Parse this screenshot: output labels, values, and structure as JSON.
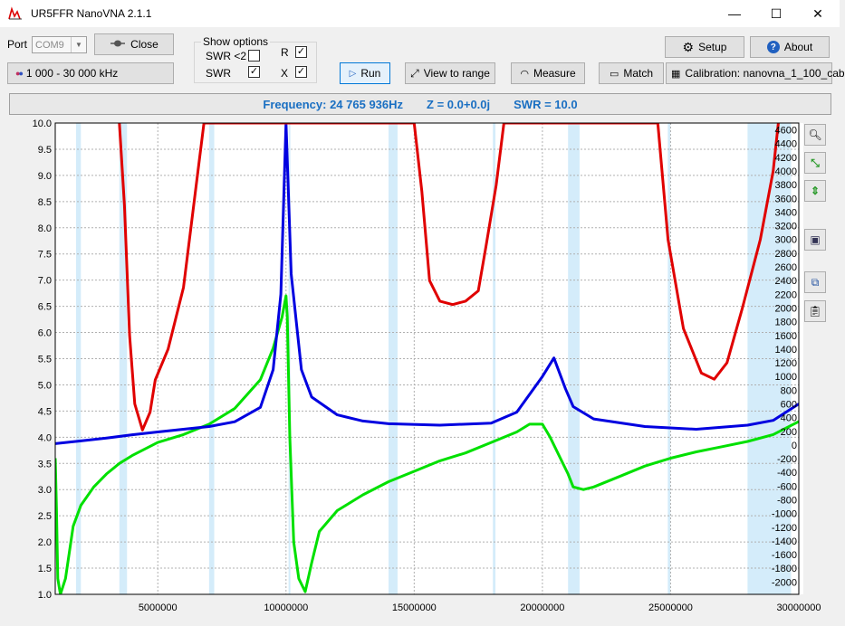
{
  "window": {
    "title": "UR5FFR NanoVNA 2.1.1",
    "minimize_glyph": "—",
    "maximize_glyph": "☐",
    "close_glyph": "✕"
  },
  "toolbar": {
    "port_label": "Port",
    "port_value": "COM9",
    "close_label": "Close",
    "range_label": "1 000 - 30 000 kHz",
    "show_options_label": "Show options",
    "swr_lt2_label": "SWR <2",
    "swr_lt2_checked": "",
    "r_label": "R",
    "r_checked": "✓",
    "swr_label": "SWR",
    "swr_checked": "✓",
    "x_label": "X",
    "x_checked": "✓",
    "run_label": "Run",
    "view_to_range_label": "View to range",
    "measure_label": "Measure",
    "match_label": "Match",
    "setup_label": "Setup",
    "about_label": "About",
    "calibration_label": "Calibration: nanovna_1_100_cab"
  },
  "status": {
    "frequency": "Frequency: 24 765 936Hz",
    "impedance": "Z = 0.0+0.0j",
    "swr": "SWR = 10.0"
  },
  "colors": {
    "swr": "#00e000",
    "r": "#0000e0",
    "x": "#e00000",
    "band": "#d4ecfa",
    "status_text": "#1a6fc2"
  },
  "chart_data": {
    "type": "line",
    "x_ticks": [
      "5000000",
      "10000000",
      "15000000",
      "20000000",
      "25000000",
      "30000000"
    ],
    "left_ticks": [
      "1.0",
      "1.5",
      "2.0",
      "2.5",
      "3.0",
      "3.5",
      "4.0",
      "4.5",
      "5.0",
      "5.5",
      "6.0",
      "6.5",
      "7.0",
      "7.5",
      "8.0",
      "8.5",
      "9.0",
      "9.5",
      "10.0"
    ],
    "right_ticks": [
      "-2000",
      "-1800",
      "-1600",
      "-1400",
      "-1200",
      "-1000",
      "-800",
      "-600",
      "-400",
      "-200",
      "0",
      "200",
      "400",
      "600",
      "800",
      "1000",
      "1200",
      "1400",
      "1600",
      "1800",
      "2000",
      "2200",
      "2400",
      "2600",
      "2800",
      "3000",
      "3200",
      "3400",
      "3600",
      "3800",
      "4000",
      "4200",
      "4400",
      "4600"
    ],
    "xlim": [
      1000000,
      30000000
    ],
    "ylim_left": [
      1.0,
      10.0
    ],
    "ylim_right": [
      -2180,
      4700
    ],
    "grid": true,
    "bands": [
      [
        1810000,
        2000000
      ],
      [
        3500000,
        3800000
      ],
      [
        7000000,
        7200000
      ],
      [
        10100000,
        10150000
      ],
      [
        14000000,
        14350000
      ],
      [
        18068000,
        18168000
      ],
      [
        21000000,
        21450000
      ],
      [
        24890000,
        24990000
      ],
      [
        28000000,
        29700000
      ]
    ],
    "series": [
      {
        "key": "swr",
        "axis": "left",
        "points": [
          [
            1000000,
            3.6
          ],
          [
            1050000,
            2.6
          ],
          [
            1100000,
            1.3
          ],
          [
            1200000,
            1.0
          ],
          [
            1400000,
            1.3
          ],
          [
            1700000,
            2.3
          ],
          [
            2000000,
            2.7
          ],
          [
            2500000,
            3.05
          ],
          [
            3000000,
            3.3
          ],
          [
            3500000,
            3.5
          ],
          [
            4000000,
            3.65
          ],
          [
            5000000,
            3.9
          ],
          [
            6000000,
            4.05
          ],
          [
            7000000,
            4.25
          ],
          [
            8000000,
            4.55
          ],
          [
            9000000,
            5.1
          ],
          [
            9500000,
            5.7
          ],
          [
            9850000,
            6.3
          ],
          [
            10000000,
            6.7
          ],
          [
            10050000,
            6.3
          ],
          [
            10150000,
            4.0
          ],
          [
            10300000,
            2.0
          ],
          [
            10500000,
            1.3
          ],
          [
            10750000,
            1.05
          ],
          [
            11000000,
            1.6
          ],
          [
            11300000,
            2.2
          ],
          [
            12000000,
            2.6
          ],
          [
            13000000,
            2.9
          ],
          [
            14000000,
            3.15
          ],
          [
            15000000,
            3.35
          ],
          [
            16000000,
            3.55
          ],
          [
            17000000,
            3.7
          ],
          [
            18000000,
            3.9
          ],
          [
            19000000,
            4.1
          ],
          [
            19500000,
            4.25
          ],
          [
            20000000,
            4.25
          ],
          [
            20300000,
            4.0
          ],
          [
            20700000,
            3.6
          ],
          [
            21000000,
            3.3
          ],
          [
            21200000,
            3.05
          ],
          [
            21600000,
            3.0
          ],
          [
            22000000,
            3.05
          ],
          [
            23000000,
            3.25
          ],
          [
            24000000,
            3.45
          ],
          [
            25000000,
            3.6
          ],
          [
            26000000,
            3.72
          ],
          [
            27000000,
            3.82
          ],
          [
            28000000,
            3.92
          ],
          [
            29000000,
            4.05
          ],
          [
            30000000,
            4.3
          ]
        ]
      },
      {
        "key": "r",
        "axis": "right",
        "points": [
          [
            1000000,
            20
          ],
          [
            2000000,
            60
          ],
          [
            3000000,
            100
          ],
          [
            4000000,
            150
          ],
          [
            5000000,
            190
          ],
          [
            6000000,
            230
          ],
          [
            7000000,
            270
          ],
          [
            8000000,
            340
          ],
          [
            9000000,
            550
          ],
          [
            9500000,
            1100
          ],
          [
            9800000,
            2200
          ],
          [
            10000000,
            4700
          ],
          [
            10200000,
            2500
          ],
          [
            10600000,
            1100
          ],
          [
            11000000,
            700
          ],
          [
            12000000,
            440
          ],
          [
            13000000,
            350
          ],
          [
            14000000,
            310
          ],
          [
            16000000,
            290
          ],
          [
            18000000,
            320
          ],
          [
            19000000,
            480
          ],
          [
            20000000,
            1000
          ],
          [
            20450000,
            1270
          ],
          [
            20900000,
            820
          ],
          [
            21200000,
            560
          ],
          [
            22000000,
            380
          ],
          [
            24000000,
            270
          ],
          [
            26000000,
            230
          ],
          [
            28000000,
            290
          ],
          [
            29000000,
            360
          ],
          [
            30000000,
            600
          ]
        ]
      },
      {
        "key": "x",
        "axis": "right",
        "points": [
          [
            3500000,
            4700
          ],
          [
            3700000,
            3500
          ],
          [
            3900000,
            1600
          ],
          [
            4100000,
            600
          ],
          [
            4400000,
            220
          ],
          [
            4700000,
            480
          ],
          [
            4900000,
            950
          ],
          [
            5400000,
            1400
          ],
          [
            6000000,
            2300
          ],
          [
            6500000,
            3800
          ],
          [
            6800000,
            4700
          ],
          [
            15000000,
            4700
          ],
          [
            15300000,
            3700
          ],
          [
            15600000,
            2400
          ],
          [
            16000000,
            2100
          ],
          [
            16500000,
            2050
          ],
          [
            17000000,
            2100
          ],
          [
            17500000,
            2250
          ],
          [
            17800000,
            2900
          ],
          [
            18200000,
            3800
          ],
          [
            18500000,
            4700
          ],
          [
            24500000,
            4700
          ],
          [
            24900000,
            3000
          ],
          [
            25500000,
            1700
          ],
          [
            26200000,
            1050
          ],
          [
            26700000,
            960
          ],
          [
            27200000,
            1200
          ],
          [
            27800000,
            2000
          ],
          [
            28500000,
            3000
          ],
          [
            29000000,
            4000
          ],
          [
            29200000,
            4700
          ]
        ]
      }
    ]
  }
}
